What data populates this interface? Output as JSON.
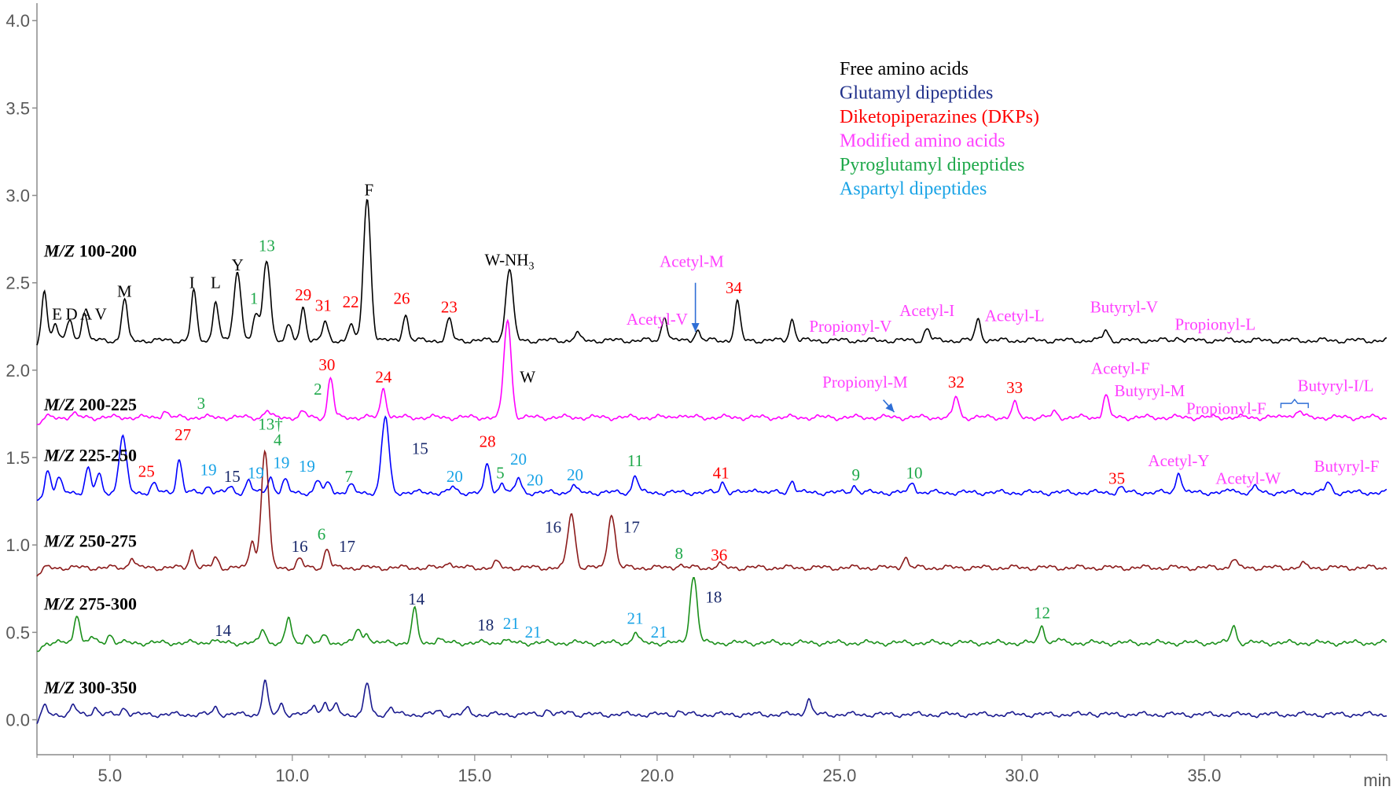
{
  "chart_data": {
    "type": "line",
    "xlabel": "min",
    "xlim": [
      3.0,
      40.0
    ],
    "ylim": [
      -0.2,
      4.1
    ],
    "x_ticks": [
      5.0,
      10.0,
      15.0,
      20.0,
      25.0,
      30.0,
      35.0
    ],
    "x_tick_labels": [
      "5.0",
      "10.0",
      "15.0",
      "20.0",
      "25.0",
      "30.0",
      "35.0"
    ],
    "y_ticks": [
      0.0,
      0.5,
      1.0,
      1.5,
      2.0,
      2.5,
      3.0,
      3.5,
      4.0
    ],
    "y_tick_labels": [
      "0.0",
      "0.5",
      "1.0",
      "1.5",
      "2.0",
      "2.5",
      "3.0",
      "3.5",
      "4.0"
    ],
    "grid": false,
    "legend_position": "top-right",
    "legend": [
      {
        "label": "Free amino acids",
        "color": "#000000"
      },
      {
        "label": "Glutamyl dipeptides",
        "color": "#1f2f8a"
      },
      {
        "label": "Diketopiperazines (DKPs)",
        "color": "#ff0000"
      },
      {
        "label": "Modified amino acids",
        "color": "#ff40ff"
      },
      {
        "label": "Pyroglutamyl dipeptides",
        "color": "#1ea84a"
      },
      {
        "label": "Aspartyl dipeptides",
        "color": "#19a3e6"
      }
    ],
    "series": [
      {
        "name": "M/Z 100-200",
        "label_prefix": "M/Z",
        "label_range": "100-200",
        "color": "#000000",
        "baseline": 2.17,
        "peaks": [
          [
            3.2,
            0.3
          ],
          [
            3.5,
            0.1
          ],
          [
            3.9,
            0.12
          ],
          [
            4.3,
            0.17
          ],
          [
            5.4,
            0.24
          ],
          [
            7.3,
            0.28
          ],
          [
            7.9,
            0.23
          ],
          [
            8.5,
            0.39
          ],
          [
            9.0,
            0.15
          ],
          [
            9.3,
            0.46
          ],
          [
            9.9,
            0.08
          ],
          [
            10.3,
            0.19
          ],
          [
            10.9,
            0.1
          ],
          [
            11.6,
            0.09
          ],
          [
            12.05,
            0.81
          ],
          [
            13.1,
            0.15
          ],
          [
            14.3,
            0.12
          ],
          [
            15.95,
            0.41
          ],
          [
            17.8,
            0.04
          ],
          [
            20.2,
            0.14
          ],
          [
            21.1,
            0.06
          ],
          [
            22.2,
            0.22
          ],
          [
            23.7,
            0.12
          ],
          [
            27.4,
            0.07
          ],
          [
            28.8,
            0.12
          ],
          [
            32.3,
            0.06
          ],
          [
            34.3,
            0.02
          ]
        ]
      },
      {
        "name": "M/Z 200-225",
        "label_prefix": "M/Z",
        "label_range": "200-225",
        "color": "#ff00ff",
        "baseline": 1.73,
        "peaks": [
          [
            4.0,
            0.02
          ],
          [
            6.5,
            0.04
          ],
          [
            9.3,
            0.04
          ],
          [
            10.3,
            0.03
          ],
          [
            11.05,
            0.23
          ],
          [
            12.5,
            0.17
          ],
          [
            15.9,
            0.56
          ],
          [
            20.6,
            0.02
          ],
          [
            28.2,
            0.12
          ],
          [
            29.8,
            0.08
          ],
          [
            30.9,
            0.03
          ],
          [
            32.3,
            0.13
          ],
          [
            37.3,
            0.02
          ],
          [
            37.6,
            0.04
          ]
        ]
      },
      {
        "name": "M/Z 225-250",
        "label_prefix": "M/Z",
        "label_range": "225-250",
        "color": "#0000ff",
        "baseline": 1.3,
        "peaks": [
          [
            3.3,
            0.13
          ],
          [
            3.6,
            0.08
          ],
          [
            4.4,
            0.14
          ],
          [
            4.7,
            0.1
          ],
          [
            5.35,
            0.32
          ],
          [
            6.2,
            0.05
          ],
          [
            6.9,
            0.19
          ],
          [
            7.7,
            0.04
          ],
          [
            8.3,
            0.03
          ],
          [
            8.8,
            0.07
          ],
          [
            9.4,
            0.09
          ],
          [
            9.8,
            0.07
          ],
          [
            10.7,
            0.07
          ],
          [
            11.0,
            0.06
          ],
          [
            11.6,
            0.04
          ],
          [
            12.55,
            0.43
          ],
          [
            14.4,
            0.03
          ],
          [
            15.35,
            0.16
          ],
          [
            15.75,
            0.06
          ],
          [
            16.2,
            0.08
          ],
          [
            17.7,
            0.04
          ],
          [
            19.4,
            0.1
          ],
          [
            21.8,
            0.06
          ],
          [
            22.7,
            0.03
          ],
          [
            23.7,
            0.07
          ],
          [
            25.4,
            0.04
          ],
          [
            27.0,
            0.06
          ],
          [
            32.7,
            0.03
          ],
          [
            34.3,
            0.12
          ],
          [
            35.8,
            0.02
          ],
          [
            36.4,
            0.03
          ],
          [
            38.4,
            0.06
          ]
        ]
      },
      {
        "name": "M/Z 250-275",
        "label_prefix": "M/Z",
        "label_range": "250-275",
        "color": "#8b1a1a",
        "baseline": 0.87,
        "peaks": [
          [
            5.6,
            0.06
          ],
          [
            7.25,
            0.1
          ],
          [
            7.9,
            0.06
          ],
          [
            8.9,
            0.16
          ],
          [
            9.25,
            0.67
          ],
          [
            10.2,
            0.05
          ],
          [
            10.95,
            0.11
          ],
          [
            14.3,
            0.04
          ],
          [
            15.6,
            0.03
          ],
          [
            17.65,
            0.31
          ],
          [
            18.75,
            0.31
          ],
          [
            20.6,
            0.02
          ],
          [
            21.7,
            0.02
          ],
          [
            26.8,
            0.06
          ],
          [
            35.8,
            0.05
          ],
          [
            37.7,
            0.02
          ]
        ]
      },
      {
        "name": "M/Z 275-300",
        "label_prefix": "M/Z",
        "label_range": "275-300",
        "color": "#1a8f1a",
        "baseline": 0.44,
        "peaks": [
          [
            4.1,
            0.17
          ],
          [
            4.5,
            0.03
          ],
          [
            5.0,
            0.05
          ],
          [
            7.8,
            0.02
          ],
          [
            9.2,
            0.08
          ],
          [
            9.9,
            0.14
          ],
          [
            10.4,
            0.05
          ],
          [
            10.9,
            0.04
          ],
          [
            11.8,
            0.08
          ],
          [
            12.05,
            0.06
          ],
          [
            13.35,
            0.19
          ],
          [
            14.0,
            0.03
          ],
          [
            15.8,
            0.02
          ],
          [
            19.4,
            0.06
          ],
          [
            21.0,
            0.38
          ],
          [
            30.55,
            0.1
          ],
          [
            31.0,
            0.02
          ],
          [
            35.8,
            0.1
          ]
        ]
      },
      {
        "name": "M/Z 300-350",
        "label_prefix": "M/Z",
        "label_range": "300-350",
        "color": "#1a1a8f",
        "baseline": 0.03,
        "peaks": [
          [
            3.2,
            0.05
          ],
          [
            4.0,
            0.05
          ],
          [
            4.6,
            0.04
          ],
          [
            5.4,
            0.04
          ],
          [
            7.9,
            0.04
          ],
          [
            9.25,
            0.19
          ],
          [
            9.7,
            0.06
          ],
          [
            10.6,
            0.06
          ],
          [
            10.9,
            0.07
          ],
          [
            11.2,
            0.05
          ],
          [
            12.05,
            0.18
          ],
          [
            12.7,
            0.04
          ],
          [
            14.0,
            0.02
          ],
          [
            14.8,
            0.03
          ],
          [
            17.0,
            0.03
          ],
          [
            17.6,
            0.02
          ],
          [
            20.6,
            0.02
          ],
          [
            24.15,
            0.09
          ],
          [
            31.9,
            0.01
          ]
        ]
      }
    ],
    "peak_labels": [
      {
        "text": "E",
        "x": 3.55,
        "y": 2.29,
        "color": "#000000"
      },
      {
        "text": "D",
        "x": 3.95,
        "y": 2.29,
        "color": "#000000"
      },
      {
        "text": "A",
        "x": 4.35,
        "y": 2.29,
        "color": "#000000"
      },
      {
        "text": "V",
        "x": 4.75,
        "y": 2.29,
        "color": "#000000"
      },
      {
        "text": "M",
        "x": 5.4,
        "y": 2.42,
        "color": "#000000"
      },
      {
        "text": "I",
        "x": 7.25,
        "y": 2.47,
        "color": "#000000"
      },
      {
        "text": "L",
        "x": 7.9,
        "y": 2.47,
        "color": "#000000"
      },
      {
        "text": "Y",
        "x": 8.5,
        "y": 2.57,
        "color": "#000000"
      },
      {
        "text": "13",
        "x": 9.3,
        "y": 2.68,
        "color": "#1ea84a"
      },
      {
        "text": "1",
        "x": 8.95,
        "y": 2.38,
        "color": "#1ea84a"
      },
      {
        "text": "29",
        "x": 10.3,
        "y": 2.4,
        "color": "#ff0000"
      },
      {
        "text": "31",
        "x": 10.85,
        "y": 2.34,
        "color": "#ff0000"
      },
      {
        "text": "22",
        "x": 11.6,
        "y": 2.36,
        "color": "#ff0000"
      },
      {
        "text": "F",
        "x": 12.1,
        "y": 3.0,
        "color": "#000000"
      },
      {
        "text": "26",
        "x": 13.0,
        "y": 2.38,
        "color": "#ff0000"
      },
      {
        "text": "23",
        "x": 14.3,
        "y": 2.33,
        "color": "#ff0000"
      },
      {
        "text": "W-NH",
        "sub": "3",
        "x": 15.95,
        "y": 2.6,
        "color": "#000000"
      },
      {
        "text": "Acetyl-V",
        "x": 20.0,
        "y": 2.26,
        "color": "#ff40ff"
      },
      {
        "text": "Acetyl-M",
        "x": 20.95,
        "y": 2.59,
        "color": "#ff40ff"
      },
      {
        "text": "34",
        "x": 22.1,
        "y": 2.44,
        "color": "#ff0000"
      },
      {
        "text": "Propionyl-V",
        "x": 25.3,
        "y": 2.22,
        "color": "#ff40ff"
      },
      {
        "text": "Acetyl-I",
        "x": 27.4,
        "y": 2.31,
        "color": "#ff40ff"
      },
      {
        "text": "Acetyl-L",
        "x": 29.8,
        "y": 2.28,
        "color": "#ff40ff"
      },
      {
        "text": "Butyryl-V",
        "x": 32.8,
        "y": 2.33,
        "color": "#ff40ff"
      },
      {
        "text": "Propionyl-L",
        "x": 35.3,
        "y": 2.23,
        "color": "#ff40ff"
      },
      {
        "text": "3",
        "x": 7.5,
        "y": 1.78,
        "color": "#1ea84a"
      },
      {
        "text": "30",
        "x": 10.95,
        "y": 2.0,
        "color": "#ff0000"
      },
      {
        "text": "2",
        "x": 10.7,
        "y": 1.86,
        "color": "#1ea84a"
      },
      {
        "text": "24",
        "x": 12.5,
        "y": 1.93,
        "color": "#ff0000"
      },
      {
        "text": "W",
        "x": 16.45,
        "y": 1.93,
        "color": "#000000"
      },
      {
        "text": "Propionyl-M",
        "x": 25.7,
        "y": 1.9,
        "color": "#ff40ff"
      },
      {
        "text": "32",
        "x": 28.2,
        "y": 1.9,
        "color": "#ff0000"
      },
      {
        "text": "33",
        "x": 29.8,
        "y": 1.87,
        "color": "#ff0000"
      },
      {
        "text": "Acetyl-F",
        "x": 32.7,
        "y": 1.98,
        "color": "#ff40ff"
      },
      {
        "text": "Butyryl-M",
        "x": 33.5,
        "y": 1.85,
        "color": "#ff40ff"
      },
      {
        "text": "Propionyl-F",
        "x": 35.6,
        "y": 1.75,
        "color": "#ff40ff"
      },
      {
        "text": "Butyryl-I/L",
        "x": 38.6,
        "y": 1.88,
        "color": "#ff40ff"
      },
      {
        "text": "25",
        "x": 6.0,
        "y": 1.39,
        "color": "#ff0000"
      },
      {
        "text": "27",
        "x": 7.0,
        "y": 1.6,
        "color": "#ff0000"
      },
      {
        "text": "19",
        "x": 7.7,
        "y": 1.4,
        "color": "#19a3e6"
      },
      {
        "text": "15",
        "x": 8.35,
        "y": 1.36,
        "color": "#1a2a6c"
      },
      {
        "text": "19",
        "x": 9.0,
        "y": 1.38,
        "color": "#19a3e6"
      },
      {
        "text": "13†",
        "x": 9.4,
        "y": 1.66,
        "color": "#1ea84a"
      },
      {
        "text": "4",
        "x": 9.6,
        "y": 1.57,
        "color": "#1ea84a"
      },
      {
        "text": "19",
        "x": 9.7,
        "y": 1.44,
        "color": "#19a3e6"
      },
      {
        "text": "19",
        "x": 10.4,
        "y": 1.42,
        "color": "#19a3e6"
      },
      {
        "text": "7",
        "x": 11.55,
        "y": 1.36,
        "color": "#1ea84a"
      },
      {
        "text": "15",
        "x": 13.5,
        "y": 1.52,
        "color": "#1a2a6c"
      },
      {
        "text": "20",
        "x": 14.45,
        "y": 1.36,
        "color": "#19a3e6"
      },
      {
        "text": "28",
        "x": 15.35,
        "y": 1.56,
        "color": "#ff0000"
      },
      {
        "text": "5",
        "x": 15.7,
        "y": 1.38,
        "color": "#1ea84a"
      },
      {
        "text": "20",
        "x": 16.2,
        "y": 1.46,
        "color": "#19a3e6"
      },
      {
        "text": "20",
        "x": 16.65,
        "y": 1.34,
        "color": "#19a3e6"
      },
      {
        "text": "20",
        "x": 17.75,
        "y": 1.37,
        "color": "#19a3e6"
      },
      {
        "text": "11",
        "x": 19.4,
        "y": 1.45,
        "color": "#1ea84a"
      },
      {
        "text": "41",
        "x": 21.75,
        "y": 1.38,
        "color": "#ff0000"
      },
      {
        "text": "9",
        "x": 25.45,
        "y": 1.37,
        "color": "#1ea84a"
      },
      {
        "text": "10",
        "x": 27.05,
        "y": 1.38,
        "color": "#1ea84a"
      },
      {
        "text": "35",
        "x": 32.6,
        "y": 1.35,
        "color": "#ff0000"
      },
      {
        "text": "Acetyl-Y",
        "x": 34.3,
        "y": 1.45,
        "color": "#ff40ff"
      },
      {
        "text": "Acetyl-W",
        "x": 36.2,
        "y": 1.35,
        "color": "#ff40ff"
      },
      {
        "text": "Butyryl-F",
        "x": 38.9,
        "y": 1.42,
        "color": "#ff40ff"
      },
      {
        "text": "16",
        "x": 10.2,
        "y": 0.96,
        "color": "#1a2a6c"
      },
      {
        "text": "6",
        "x": 10.8,
        "y": 1.03,
        "color": "#1ea84a"
      },
      {
        "text": "17",
        "x": 11.5,
        "y": 0.96,
        "color": "#1a2a6c"
      },
      {
        "text": "16",
        "x": 17.15,
        "y": 1.07,
        "color": "#1a2a6c"
      },
      {
        "text": "17",
        "x": 19.3,
        "y": 1.07,
        "color": "#1a2a6c"
      },
      {
        "text": "8",
        "x": 20.6,
        "y": 0.92,
        "color": "#1ea84a"
      },
      {
        "text": "36",
        "x": 21.7,
        "y": 0.91,
        "color": "#ff0000"
      },
      {
        "text": "14",
        "x": 8.1,
        "y": 0.48,
        "color": "#1a2a6c"
      },
      {
        "text": "14",
        "x": 13.4,
        "y": 0.66,
        "color": "#1a2a6c"
      },
      {
        "text": "18",
        "x": 15.3,
        "y": 0.51,
        "color": "#1a2a6c"
      },
      {
        "text": "21",
        "x": 16.0,
        "y": 0.52,
        "color": "#19a3e6"
      },
      {
        "text": "21",
        "x": 16.6,
        "y": 0.47,
        "color": "#19a3e6"
      },
      {
        "text": "21",
        "x": 19.4,
        "y": 0.55,
        "color": "#19a3e6"
      },
      {
        "text": "21",
        "x": 20.05,
        "y": 0.47,
        "color": "#19a3e6"
      },
      {
        "text": "18",
        "x": 21.55,
        "y": 0.67,
        "color": "#1a2a6c"
      },
      {
        "text": "12",
        "x": 30.55,
        "y": 0.58,
        "color": "#1ea84a"
      }
    ],
    "arrows": [
      {
        "x1": 21.05,
        "y1": 2.5,
        "x2": 21.05,
        "y2": 2.22
      },
      {
        "x1": 26.2,
        "y1": 1.83,
        "x2": 26.5,
        "y2": 1.76
      }
    ],
    "bracket": {
      "x1": 37.1,
      "x2": 37.85,
      "y": 1.81
    }
  }
}
